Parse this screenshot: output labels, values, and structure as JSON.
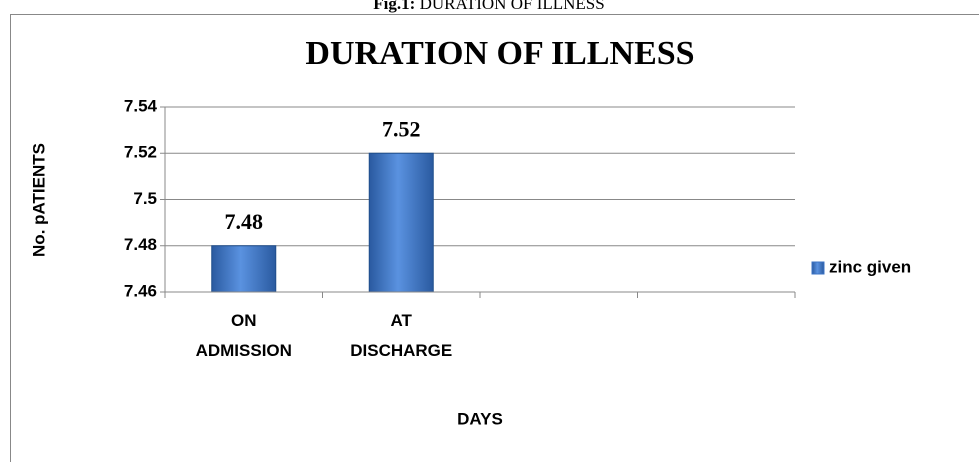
{
  "caption_label": "Fig.1:",
  "caption": "DURATION OF ILLNESS",
  "chart_data": {
    "type": "bar",
    "title": "DURATION OF ILLNESS",
    "x_label": "DAYS",
    "y_label": "No. pATIENTS",
    "categories": [
      "ON ADMISSION",
      "AT DISCHARGE",
      null,
      null
    ],
    "series": [
      {
        "name": "zinc given",
        "color": "#3b73c4",
        "values": [
          7.48,
          7.52,
          null,
          null
        ]
      }
    ],
    "ylim": [
      7.46,
      7.54
    ],
    "yticks": [
      7.46,
      7.48,
      7.5,
      7.52,
      7.54
    ],
    "grid": true,
    "legend": "right"
  }
}
